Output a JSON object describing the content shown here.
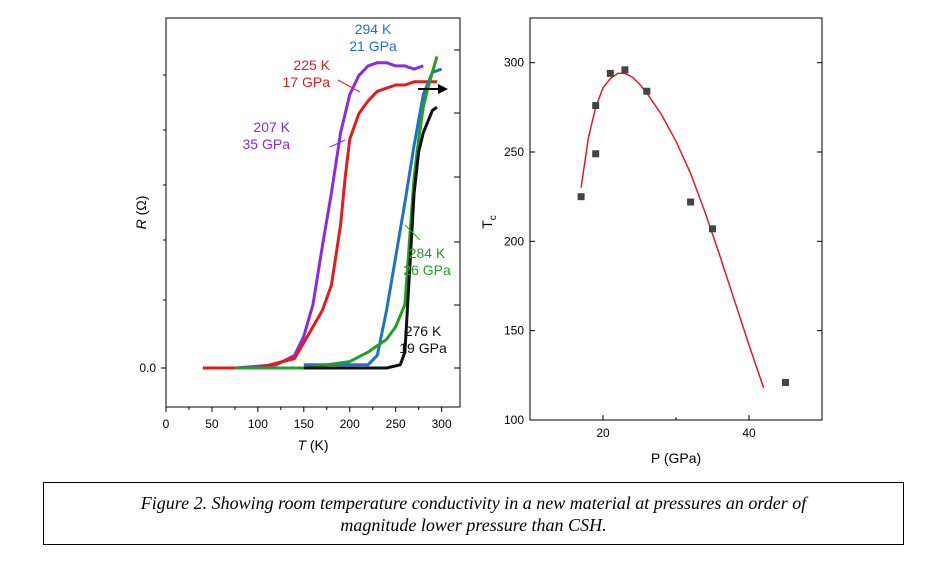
{
  "chart_data": [
    {
      "type": "line",
      "xlabel": "T (K)",
      "ylabel": "R (Ω)",
      "xlim": [
        0,
        320
      ],
      "xticks": [
        0,
        50,
        100,
        150,
        200,
        250,
        300
      ],
      "ytick_labels": [
        "0.0"
      ],
      "series": [
        {
          "label": [
            "207 K",
            "35 GPa"
          ],
          "color": "#8a2be2",
          "x": [
            75,
            120,
            140,
            150,
            160,
            170,
            180,
            190,
            200,
            210,
            220,
            230,
            240,
            250,
            260,
            270,
            280
          ],
          "y": [
            0.0,
            0.01,
            0.04,
            0.1,
            0.2,
            0.38,
            0.55,
            0.74,
            0.86,
            0.92,
            0.95,
            0.96,
            0.96,
            0.95,
            0.95,
            0.94,
            0.95
          ]
        },
        {
          "label": [
            "225 K",
            "17 GPa"
          ],
          "color": "#e41a1c",
          "x": [
            40,
            100,
            140,
            150,
            160,
            170,
            180,
            190,
            195,
            200,
            210,
            220,
            230,
            240,
            250,
            260,
            270,
            280,
            290,
            295
          ],
          "y": [
            0.0,
            0.0,
            0.03,
            0.08,
            0.13,
            0.18,
            0.26,
            0.45,
            0.6,
            0.72,
            0.8,
            0.84,
            0.87,
            0.88,
            0.89,
            0.89,
            0.9,
            0.9,
            0.9,
            0.9
          ]
        },
        {
          "label": [
            "294 K",
            "21 GPa"
          ],
          "color": "#1f6fd1",
          "x": [
            150,
            220,
            230,
            240,
            250,
            260,
            270,
            280,
            290,
            300
          ],
          "y": [
            0.01,
            0.01,
            0.04,
            0.18,
            0.35,
            0.52,
            0.7,
            0.86,
            0.93,
            0.94
          ]
        },
        {
          "label": [
            "284 K",
            "26 GPa"
          ],
          "color": "#22a022",
          "x": [
            75,
            150,
            200,
            220,
            240,
            250,
            260,
            265,
            270,
            275,
            280,
            285,
            290,
            295
          ],
          "y": [
            0.0,
            0.0,
            0.02,
            0.05,
            0.09,
            0.13,
            0.2,
            0.4,
            0.6,
            0.72,
            0.82,
            0.88,
            0.93,
            0.98
          ]
        },
        {
          "label": [
            "276 K",
            "19 GPa"
          ],
          "color": "#111111",
          "x": [
            150,
            220,
            240,
            255,
            260,
            265,
            270,
            275,
            280,
            290,
            295
          ],
          "y": [
            0.0,
            0.0,
            0.0,
            0.01,
            0.05,
            0.3,
            0.55,
            0.68,
            0.74,
            0.81,
            0.82
          ]
        }
      ]
    },
    {
      "type": "scatter",
      "xlabel": "P (GPa)",
      "ylabel": "Tc",
      "xlim": [
        10,
        50
      ],
      "ylim": [
        100,
        325
      ],
      "xticks": [
        20,
        40
      ],
      "yticks": [
        100,
        150,
        200,
        250,
        300
      ],
      "points": [
        [
          17,
          225
        ],
        [
          19,
          276
        ],
        [
          19,
          249
        ],
        [
          21,
          294
        ],
        [
          23,
          296
        ],
        [
          26,
          284
        ],
        [
          32,
          222
        ],
        [
          35,
          207
        ],
        [
          45,
          121
        ]
      ],
      "fit_line": {
        "x": [
          17,
          18,
          19,
          20,
          21,
          22,
          23,
          24,
          25,
          26,
          28,
          30,
          32,
          34,
          36,
          38,
          40,
          42
        ],
        "y": [
          230,
          258,
          275,
          286,
          291,
          294,
          294,
          292,
          288,
          283,
          271,
          256,
          238,
          216,
          192,
          167,
          142,
          118
        ]
      }
    }
  ],
  "caption": {
    "line1": "Figure 2. Showing room temperature conductivity in a new material at pressures an order of",
    "line2": "magnitude lower pressure than CSH."
  }
}
